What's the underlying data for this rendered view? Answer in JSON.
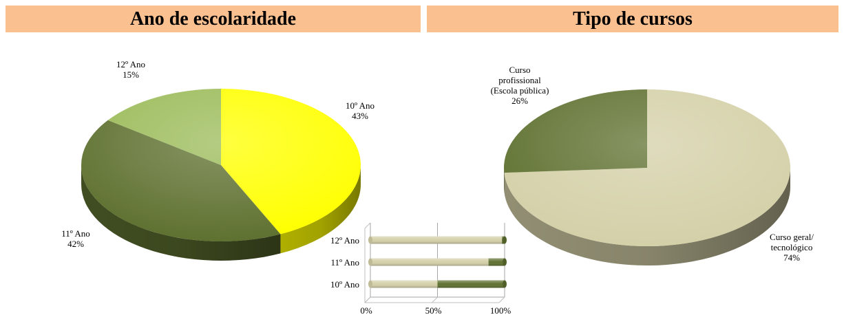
{
  "chart_data": [
    {
      "type": "pie",
      "title": "Ano de escolaridade",
      "slices": [
        {
          "label": "10º Ano",
          "value": 43,
          "value_label": "43%",
          "color": "#ffff00"
        },
        {
          "label": "11º Ano",
          "value": 42,
          "value_label": "42%",
          "color": "#5f7130"
        },
        {
          "label": "12º Ano",
          "value": 15,
          "value_label": "15%",
          "color": "#9bbb59"
        }
      ]
    },
    {
      "type": "pie",
      "title": "Tipo de cursos",
      "slices": [
        {
          "label": "Curso geral/ tecnológico",
          "label_lines": [
            "Curso geral/",
            "tecnológico"
          ],
          "value": 74,
          "value_label": "74%",
          "color": "#d4d0a8"
        },
        {
          "label": "Curso profissional (Escola pública)",
          "label_lines": [
            "Curso",
            "profissional",
            "(Escola pública)"
          ],
          "value": 26,
          "value_label": "26%",
          "color": "#5f7130"
        }
      ]
    },
    {
      "type": "bar",
      "orientation": "horizontal",
      "stacked": "percent",
      "categories": [
        "10º Ano",
        "11º Ano",
        "12º Ano"
      ],
      "series": [
        {
          "values": [
            50,
            88,
            98
          ],
          "color": "#d4d0a8"
        },
        {
          "values": [
            50,
            12,
            2
          ],
          "color": "#5f7130"
        }
      ],
      "x_ticks": [
        "0%",
        "50%",
        "100%"
      ],
      "xlim": [
        0,
        100
      ],
      "grid": true
    }
  ]
}
